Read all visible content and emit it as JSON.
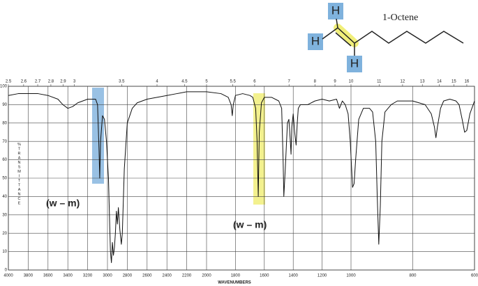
{
  "molecule": {
    "name": "1-Octene",
    "atoms": [
      "H",
      "H",
      "H"
    ]
  },
  "chart_data": {
    "type": "line",
    "x_label": "WAVENUMBERS",
    "y_label": "%TRANSMITTANCE",
    "annotations": [
      "(w – m)",
      "(w – m)"
    ],
    "color": "#111111",
    "grid": true,
    "x": [
      4000,
      3900,
      3800,
      3700,
      3600,
      3500,
      3450,
      3400,
      3350,
      3300,
      3200,
      3120,
      3100,
      3085,
      3078,
      3070,
      3050,
      3030,
      3010,
      2990,
      2970,
      2960,
      2950,
      2940,
      2930,
      2920,
      2910,
      2900,
      2890,
      2875,
      2860,
      2850,
      2830,
      2800,
      2750,
      2700,
      2600,
      2500,
      2400,
      2300,
      2200,
      2100,
      2000,
      1900,
      1850,
      1830,
      1822,
      1815,
      1800,
      1750,
      1700,
      1680,
      1660,
      1650,
      1642,
      1635,
      1620,
      1600,
      1550,
      1500,
      1480,
      1470,
      1465,
      1455,
      1440,
      1430,
      1420,
      1415,
      1410,
      1400,
      1390,
      1380,
      1372,
      1365,
      1350,
      1300,
      1250,
      1200,
      1150,
      1100,
      1080,
      1070,
      1060,
      1040,
      1020,
      1005,
      995,
      990,
      985,
      975,
      960,
      940,
      930,
      920,
      915,
      910,
      905,
      900,
      890,
      870,
      850,
      800,
      760,
      740,
      730,
      725,
      720,
      710,
      700,
      680,
      660,
      650,
      640,
      632,
      625,
      615,
      600
    ],
    "values": [
      95,
      96,
      96,
      96,
      95,
      93,
      90,
      88,
      89,
      91,
      93,
      93,
      90,
      65,
      50,
      70,
      84,
      82,
      70,
      50,
      10,
      4,
      15,
      8,
      12,
      20,
      32,
      25,
      34,
      22,
      14,
      20,
      55,
      80,
      88,
      91,
      93,
      94,
      95,
      96,
      97,
      97,
      97,
      96,
      94,
      90,
      84,
      90,
      95,
      96,
      95,
      94,
      88,
      70,
      40,
      75,
      91,
      94,
      94,
      92,
      88,
      60,
      40,
      55,
      80,
      82,
      70,
      63,
      78,
      85,
      75,
      68,
      80,
      88,
      90,
      90,
      92,
      93,
      92,
      93,
      88,
      90,
      92,
      90,
      85,
      70,
      45,
      47,
      60,
      82,
      88,
      88,
      86,
      70,
      40,
      14,
      35,
      70,
      86,
      90,
      92,
      92,
      90,
      85,
      78,
      72,
      78,
      88,
      92,
      93,
      92,
      90,
      82,
      75,
      76,
      85,
      92
    ],
    "xlim": [
      4000,
      600
    ],
    "xticks": [
      4000,
      3800,
      3600,
      3400,
      3200,
      3000,
      2800,
      2600,
      2400,
      2200,
      2000,
      1800,
      1600,
      1400,
      1200,
      1000,
      800,
      600
    ],
    "x2ticks": [
      {
        "value": 4000,
        "label": "2.5"
      },
      {
        "value": 3846,
        "label": "2.6"
      },
      {
        "value": 3704,
        "label": "2.7"
      },
      {
        "value": 3571,
        "label": "2.8"
      },
      {
        "value": 3448,
        "label": "2.9"
      },
      {
        "value": 3333,
        "label": "3"
      },
      {
        "value": 2857,
        "label": "3.5"
      },
      {
        "value": 2500,
        "label": "4"
      },
      {
        "value": 2222,
        "label": "4.5"
      },
      {
        "value": 2000,
        "label": "5"
      },
      {
        "value": 1818,
        "label": "5.5"
      },
      {
        "value": 1667,
        "label": "6"
      },
      {
        "value": 1429,
        "label": "7"
      },
      {
        "value": 1250,
        "label": "8"
      },
      {
        "value": 1111,
        "label": "9"
      },
      {
        "value": 1000,
        "label": "10"
      },
      {
        "value": 909,
        "label": "11"
      },
      {
        "value": 833,
        "label": "12"
      },
      {
        "value": 769,
        "label": "13"
      },
      {
        "value": 714,
        "label": "14"
      },
      {
        "value": 667,
        "label": "15"
      },
      {
        "value": 625,
        "label": "16"
      }
    ],
    "ylim": [
      0,
      100
    ],
    "yticks": [
      0,
      10,
      20,
      30,
      40,
      50,
      60,
      70,
      80,
      90,
      100
    ]
  }
}
